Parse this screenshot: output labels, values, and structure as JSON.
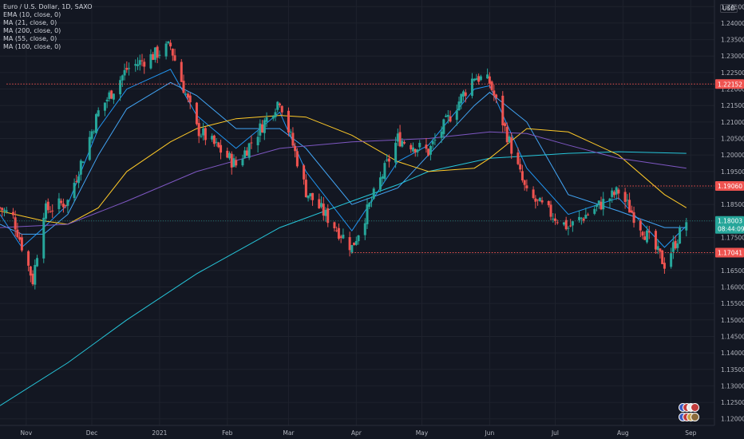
{
  "chart_data": {
    "type": "candlestick",
    "title": "Euro / U.S. Dollar, 1D, SAXO",
    "currency": "USD",
    "indicators": [
      {
        "label": "EMA (10, close, 0)",
        "color": "#2196f3"
      },
      {
        "label": "MA (21, close, 0)",
        "color": "#42a5f5"
      },
      {
        "label": "MA (200, close, 0)",
        "color": "#26c6da"
      },
      {
        "label": "MA (55, close, 0)",
        "color": "#ffca28"
      },
      {
        "label": "MA (100, close, 0)",
        "color": "#7e57c2"
      }
    ],
    "x_labels": [
      {
        "label": "Nov",
        "date": "2020-11-01"
      },
      {
        "label": "Dec",
        "date": "2020-12-01"
      },
      {
        "label": "2021",
        "date": "2021-01-01"
      },
      {
        "label": "Feb",
        "date": "2021-02-01"
      },
      {
        "label": "Mar",
        "date": "2021-03-01"
      },
      {
        "label": "Apr",
        "date": "2021-04-01"
      },
      {
        "label": "May",
        "date": "2021-05-01"
      },
      {
        "label": "Jun",
        "date": "2021-06-01"
      },
      {
        "label": "Jul",
        "date": "2021-07-01"
      },
      {
        "label": "Aug",
        "date": "2021-08-01"
      },
      {
        "label": "Sep",
        "date": "2021-09-01"
      }
    ],
    "y_ticks": [
      "1.24500",
      "1.24000",
      "1.23500",
      "1.23000",
      "1.22500",
      "1.22000",
      "1.21500",
      "1.21000",
      "1.20500",
      "1.20000",
      "1.19500",
      "1.19000",
      "1.18500",
      "1.18000",
      "1.17500",
      "1.17000",
      "1.16500",
      "1.16000",
      "1.15500",
      "1.15000",
      "1.14500",
      "1.14000",
      "1.13500",
      "1.13000",
      "1.12500",
      "1.12000"
    ],
    "y_range": [
      1.118,
      1.247
    ],
    "levels": [
      {
        "value": 1.22152,
        "label": "1.22152",
        "start": "2020-10-23"
      },
      {
        "value": 1.1906,
        "label": "1.19060",
        "start": "2021-07-30"
      },
      {
        "value": 1.17041,
        "label": "1.17041",
        "start": "2021-03-30"
      }
    ],
    "current_price": {
      "label": "1.18003",
      "value": 1.18003,
      "countdown": "08:44:09"
    },
    "colors": {
      "up": "#26a69a",
      "down": "#ef5350",
      "level": "#ef5350",
      "current": "#26a69a"
    },
    "anchors": [
      [
        "2020-10-20",
        1.184
      ],
      [
        "2020-10-26",
        1.181
      ],
      [
        "2020-11-04",
        1.162
      ],
      [
        "2020-11-09",
        1.183
      ],
      [
        "2020-11-20",
        1.186
      ],
      [
        "2020-12-04",
        1.213
      ],
      [
        "2020-12-17",
        1.226
      ],
      [
        "2021-01-06",
        1.233
      ],
      [
        "2021-01-18",
        1.208
      ],
      [
        "2021-02-05",
        1.197
      ],
      [
        "2021-02-25",
        1.217
      ],
      [
        "2021-03-09",
        1.189
      ],
      [
        "2021-03-30",
        1.172
      ],
      [
        "2021-04-20",
        1.205
      ],
      [
        "2021-05-04",
        1.201
      ],
      [
        "2021-05-25",
        1.224
      ],
      [
        "2021-06-01",
        1.222
      ],
      [
        "2021-06-18",
        1.188
      ],
      [
        "2021-07-07",
        1.178
      ],
      [
        "2021-07-30",
        1.189
      ],
      [
        "2021-08-20",
        1.167
      ],
      [
        "2021-08-30",
        1.18
      ]
    ],
    "series": {
      "ema10": [
        [
          "2020-10-20",
          1.182
        ],
        [
          "2020-10-30",
          1.172
        ],
        [
          "2020-11-09",
          1.178
        ],
        [
          "2020-11-20",
          1.185
        ],
        [
          "2020-12-04",
          1.208
        ],
        [
          "2020-12-17",
          1.22
        ],
        [
          "2021-01-06",
          1.226
        ],
        [
          "2021-01-18",
          1.212
        ],
        [
          "2021-02-05",
          1.202
        ],
        [
          "2021-02-25",
          1.213
        ],
        [
          "2021-03-09",
          1.195
        ],
        [
          "2021-03-30",
          1.177
        ],
        [
          "2021-04-20",
          1.198
        ],
        [
          "2021-05-04",
          1.203
        ],
        [
          "2021-05-25",
          1.22
        ],
        [
          "2021-06-01",
          1.221
        ],
        [
          "2021-06-18",
          1.196
        ],
        [
          "2021-07-07",
          1.182
        ],
        [
          "2021-07-30",
          1.187
        ],
        [
          "2021-08-20",
          1.172
        ],
        [
          "2021-08-30",
          1.1785
        ]
      ],
      "ma21": [
        [
          "2020-10-20",
          1.179
        ],
        [
          "2020-10-30",
          1.176
        ],
        [
          "2020-11-09",
          1.176
        ],
        [
          "2020-11-20",
          1.182
        ],
        [
          "2020-12-04",
          1.2
        ],
        [
          "2020-12-17",
          1.214
        ],
        [
          "2021-01-06",
          1.222
        ],
        [
          "2021-01-18",
          1.218
        ],
        [
          "2021-02-05",
          1.208
        ],
        [
          "2021-02-25",
          1.208
        ],
        [
          "2021-03-09",
          1.202
        ],
        [
          "2021-03-30",
          1.185
        ],
        [
          "2021-04-20",
          1.19
        ],
        [
          "2021-05-04",
          1.2
        ],
        [
          "2021-05-25",
          1.215
        ],
        [
          "2021-06-01",
          1.219
        ],
        [
          "2021-06-18",
          1.21
        ],
        [
          "2021-07-07",
          1.188
        ],
        [
          "2021-07-30",
          1.183
        ],
        [
          "2021-08-20",
          1.178
        ],
        [
          "2021-08-30",
          1.178
        ]
      ],
      "ma55": [
        [
          "2020-10-20",
          1.183
        ],
        [
          "2020-11-09",
          1.18
        ],
        [
          "2020-11-20",
          1.179
        ],
        [
          "2020-12-04",
          1.184
        ],
        [
          "2020-12-17",
          1.195
        ],
        [
          "2021-01-06",
          1.204
        ],
        [
          "2021-01-18",
          1.208
        ],
        [
          "2021-02-05",
          1.211
        ],
        [
          "2021-02-25",
          1.212
        ],
        [
          "2021-03-09",
          1.2115
        ],
        [
          "2021-03-30",
          1.206
        ],
        [
          "2021-04-20",
          1.198
        ],
        [
          "2021-05-04",
          1.195
        ],
        [
          "2021-05-25",
          1.196
        ],
        [
          "2021-06-01",
          1.199
        ],
        [
          "2021-06-18",
          1.208
        ],
        [
          "2021-07-07",
          1.207
        ],
        [
          "2021-07-30",
          1.2
        ],
        [
          "2021-08-20",
          1.188
        ],
        [
          "2021-08-30",
          1.184
        ]
      ],
      "ma100": [
        [
          "2020-10-20",
          1.178
        ],
        [
          "2020-11-20",
          1.179
        ],
        [
          "2020-12-17",
          1.186
        ],
        [
          "2021-01-18",
          1.195
        ],
        [
          "2021-02-25",
          1.202
        ],
        [
          "2021-03-30",
          1.204
        ],
        [
          "2021-05-04",
          1.205
        ],
        [
          "2021-06-01",
          1.207
        ],
        [
          "2021-06-18",
          1.2065
        ],
        [
          "2021-07-07",
          1.203
        ],
        [
          "2021-07-30",
          1.199
        ],
        [
          "2021-08-30",
          1.196
        ]
      ],
      "ma200": [
        [
          "2020-10-20",
          1.124
        ],
        [
          "2020-11-20",
          1.137
        ],
        [
          "2020-12-17",
          1.15
        ],
        [
          "2021-01-18",
          1.164
        ],
        [
          "2021-02-25",
          1.178
        ],
        [
          "2021-03-30",
          1.186
        ],
        [
          "2021-04-20",
          1.191
        ],
        [
          "2021-05-04",
          1.195
        ],
        [
          "2021-06-01",
          1.199
        ],
        [
          "2021-07-07",
          1.2005
        ],
        [
          "2021-07-30",
          1.201
        ],
        [
          "2021-08-30",
          1.2005
        ]
      ]
    }
  }
}
